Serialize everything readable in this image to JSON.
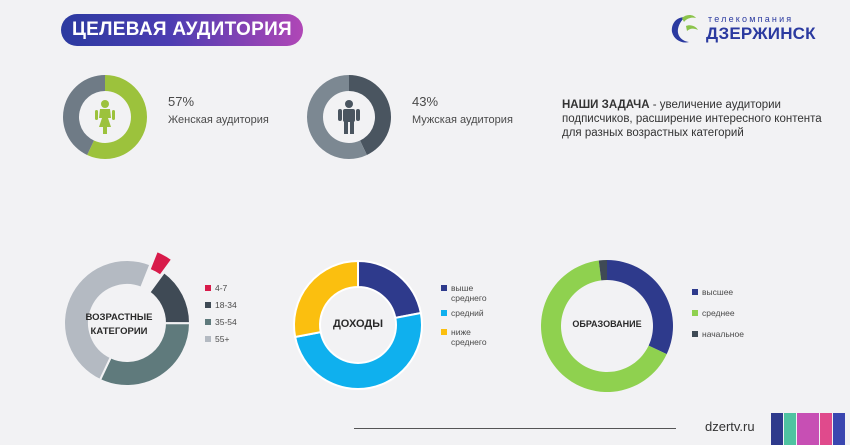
{
  "header": {
    "title": "ЦЕЛЕВАЯ АУДИТОРИЯ",
    "logo_top": "телекомпания",
    "logo_main": "ДЗЕРЖИНСК",
    "brand_colors": {
      "blue": "#2b3aa0",
      "purple": "#b047b6",
      "green": "#8bc34a"
    }
  },
  "gender": {
    "female": {
      "percent_label": "57%",
      "label": "Женская аудитория",
      "value": 57,
      "color": "#9cc23c",
      "rest_color": "#6f7b86",
      "icon": "female-person-icon"
    },
    "male": {
      "percent_label": "43%",
      "label": "Мужская аудитория",
      "value": 43,
      "color": "#4a5560",
      "rest_color": "#7c8892",
      "icon": "male-person-icon"
    }
  },
  "task": {
    "bold": "НАШИ ЗАДАЧА",
    "text": " - увеличение аудитории подписчиков, расширение интересного контента для разных возрастных категорий"
  },
  "chart_data": [
    {
      "type": "pie",
      "center_label_lines": [
        "ВОЗРАСТНЫЕ",
        "КАТЕГОРИИ"
      ],
      "categories": [
        "4-7",
        "18-34",
        "35-54",
        "55+"
      ],
      "values": [
        4,
        15,
        32,
        49
      ],
      "colors": [
        "#d81b4a",
        "#3f4a55",
        "#5f7a7c",
        "#b4bac2"
      ],
      "exploded": "4-7",
      "legend": "right"
    },
    {
      "type": "pie",
      "center_label_lines": [
        "ДОХОДЫ"
      ],
      "categories": [
        "выше среднего",
        "средний",
        "ниже среднего"
      ],
      "legend_lines": [
        [
          "выше",
          "среднего"
        ],
        [
          "средний"
        ],
        [
          "ниже",
          "среднего"
        ]
      ],
      "values": [
        22,
        50,
        28
      ],
      "colors": [
        "#2e3a8c",
        "#0fb0ee",
        "#fbbf0f"
      ],
      "legend": "right"
    },
    {
      "type": "pie",
      "center_label_lines": [
        "ОБРАЗОВАНИЕ"
      ],
      "categories": [
        "высшее",
        "среднее",
        "начальное"
      ],
      "values": [
        32,
        66,
        2
      ],
      "colors": [
        "#2e3a8c",
        "#8fd14f",
        "#3f4a55"
      ],
      "legend": "right"
    }
  ],
  "footer": {
    "url": "dzertv.ru",
    "bar_colors": [
      "#2e3a8c",
      "#4fc3a1",
      "#c74fb4",
      "#e04a8c",
      "#3a46b0"
    ]
  }
}
